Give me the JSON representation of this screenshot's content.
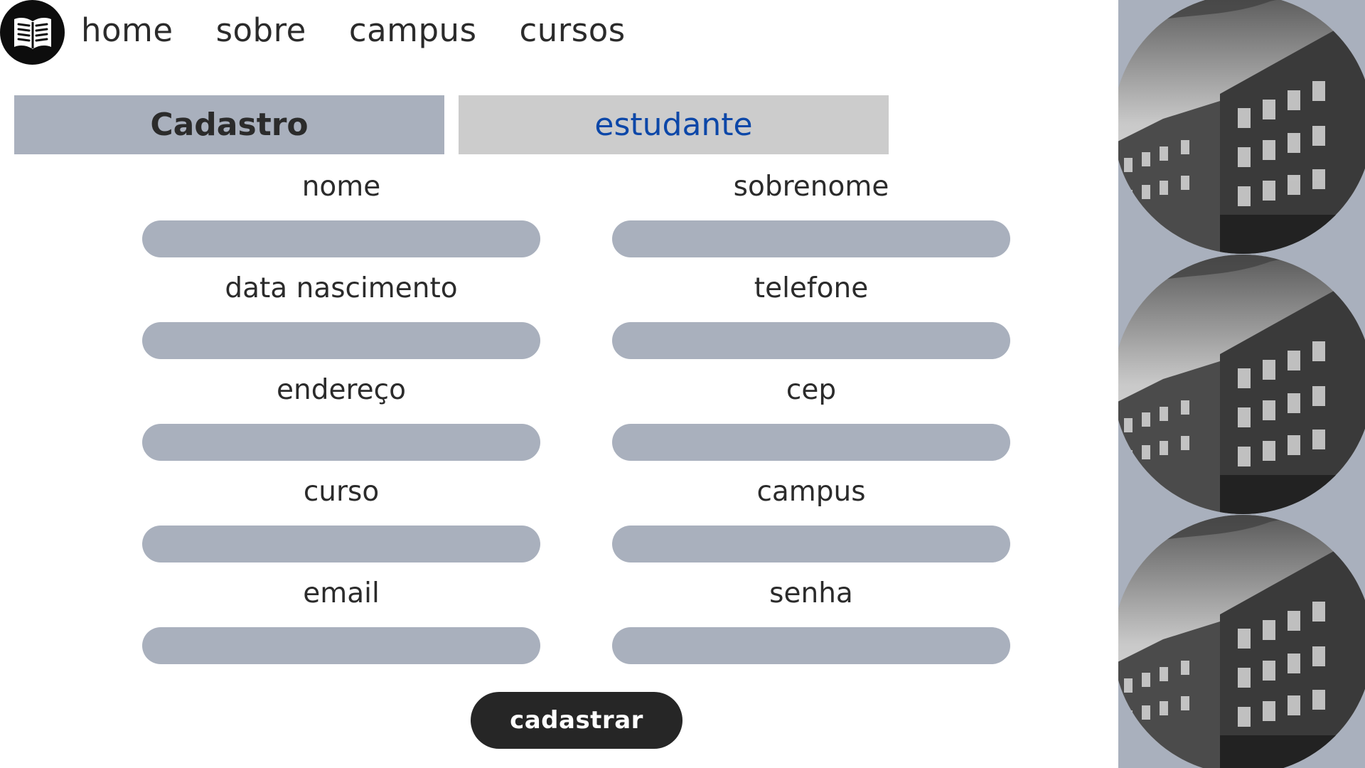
{
  "nav": {
    "logo_icon": "open-book-icon",
    "items": [
      {
        "label": "home"
      },
      {
        "label": "sobre"
      },
      {
        "label": "campus"
      },
      {
        "label": "cursos"
      }
    ]
  },
  "tabs": {
    "cadastro": "Cadastro",
    "estudante": "estudante"
  },
  "form": {
    "fields": [
      {
        "label": "nome",
        "value": ""
      },
      {
        "label": "sobrenome",
        "value": ""
      },
      {
        "label": "data nascimento",
        "value": ""
      },
      {
        "label": "telefone",
        "value": ""
      },
      {
        "label": "endereço",
        "value": ""
      },
      {
        "label": "cep",
        "value": ""
      },
      {
        "label": "curso",
        "value": ""
      },
      {
        "label": "campus",
        "value": ""
      },
      {
        "label": "email",
        "value": ""
      },
      {
        "label": "senha",
        "value": ""
      }
    ],
    "submit_label": "cadastrar"
  },
  "side_panel": {
    "images": [
      {
        "icon": "building-photo"
      },
      {
        "icon": "building-photo"
      },
      {
        "icon": "building-photo"
      }
    ]
  },
  "colors": {
    "accent_gray": "#a9b0bd",
    "tab_light": "#cccccc",
    "link_blue": "#0c47a8",
    "button_dark": "#262626"
  }
}
